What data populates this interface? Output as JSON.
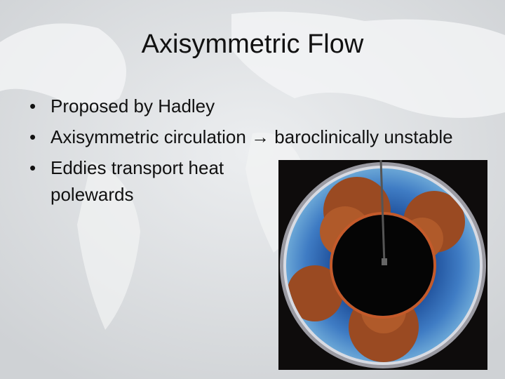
{
  "title": "Axisymmetric Flow",
  "bullets": [
    "Proposed by Hadley",
    "Axisymmetric circulation → baroclinically unstable",
    "Eddies transport heat polewards"
  ]
}
